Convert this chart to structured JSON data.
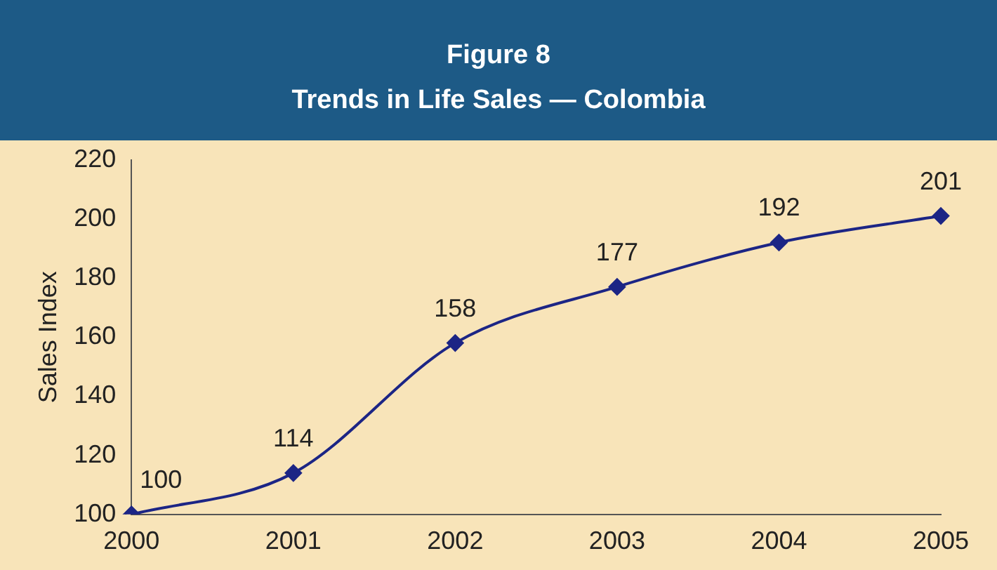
{
  "chart_data": {
    "type": "line",
    "title": "Figure 8",
    "subtitle": "Trends in Life Sales — Colombia",
    "ylabel": "Sales Index",
    "categories": [
      "2000",
      "2001",
      "2002",
      "2003",
      "2004",
      "2005"
    ],
    "series": [
      {
        "color": "#1c2585",
        "values": [
          100,
          114,
          158,
          177,
          192,
          201
        ]
      }
    ],
    "ylim": [
      100,
      220
    ],
    "yticks": [
      100,
      120,
      140,
      160,
      180,
      200,
      220
    ],
    "grid": false,
    "legend": false,
    "marker": "diamond",
    "line_style": "solid",
    "data_labels": true
  }
}
